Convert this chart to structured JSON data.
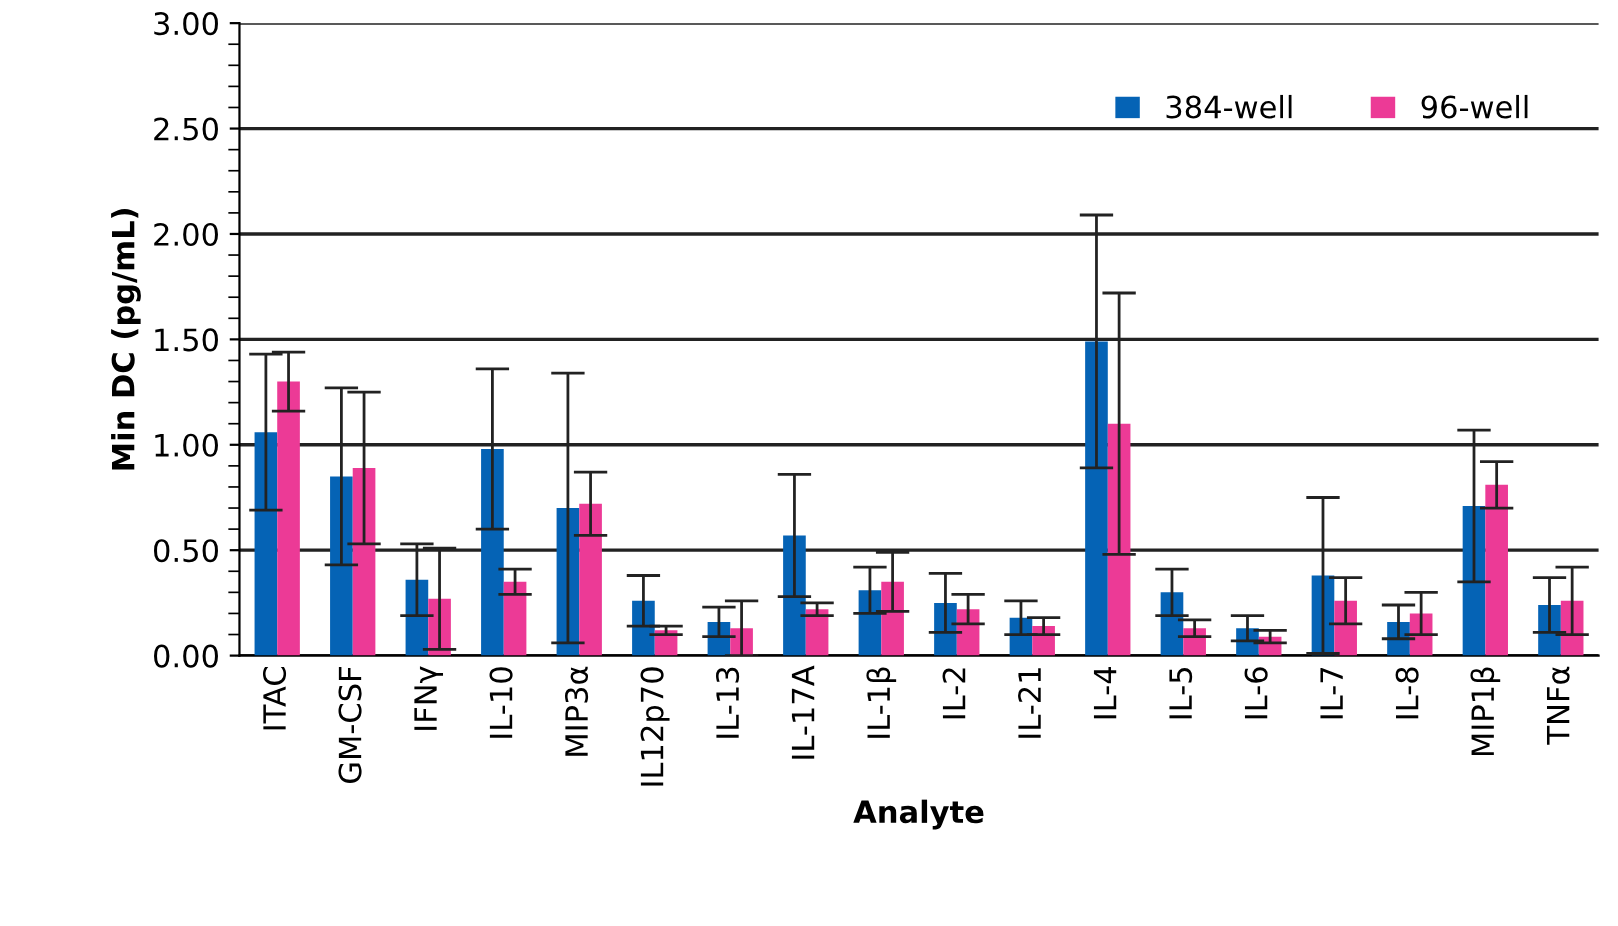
{
  "chart_data": {
    "type": "bar",
    "xlabel": "Analyte",
    "ylabel": "Min DC (pg/mL)",
    "categories": [
      "ITAC",
      "GM-CSF",
      "IFNγ",
      "IL-10",
      "MIP3α",
      "IL12p70",
      "IL-13",
      "IL-17A",
      "IL-1β",
      "IL-2",
      "IL-21",
      "IL-4",
      "IL-5",
      "IL-6",
      "IL-7",
      "IL-8",
      "MIP1β",
      "TNFα"
    ],
    "series": [
      {
        "name": "384-well",
        "color": "#0563b5",
        "values": [
          1.06,
          0.85,
          0.36,
          0.98,
          0.7,
          0.26,
          0.16,
          0.57,
          0.31,
          0.25,
          0.18,
          1.49,
          0.3,
          0.13,
          0.38,
          0.16,
          0.71,
          0.24
        ],
        "errors": [
          0.37,
          0.42,
          0.17,
          0.38,
          0.64,
          0.12,
          0.07,
          0.29,
          0.11,
          0.14,
          0.08,
          0.6,
          0.11,
          0.06,
          0.37,
          0.08,
          0.36,
          0.13
        ]
      },
      {
        "name": "96-well",
        "color": "#ec3a96",
        "values": [
          1.3,
          0.89,
          0.27,
          0.35,
          0.72,
          0.12,
          0.13,
          0.22,
          0.35,
          0.22,
          0.14,
          1.1,
          0.13,
          0.09,
          0.26,
          0.2,
          0.81,
          0.26
        ],
        "errors": [
          0.14,
          0.36,
          0.24,
          0.06,
          0.15,
          0.02,
          0.13,
          0.03,
          0.14,
          0.07,
          0.04,
          0.62,
          0.04,
          0.03,
          0.11,
          0.1,
          0.11,
          0.16
        ]
      }
    ],
    "ylim": [
      0,
      3
    ],
    "yticks": [
      {
        "value": 0,
        "label": "0.00"
      },
      {
        "value": 0.5,
        "label": "0.50"
      },
      {
        "value": 1,
        "label": "1.00"
      },
      {
        "value": 1.5,
        "label": "1.50"
      },
      {
        "value": 2,
        "label": "2.00"
      },
      {
        "value": 2.5,
        "label": "2.50"
      },
      {
        "value": 3,
        "label": "3.00"
      }
    ],
    "grid": "y",
    "legend": "top right"
  }
}
